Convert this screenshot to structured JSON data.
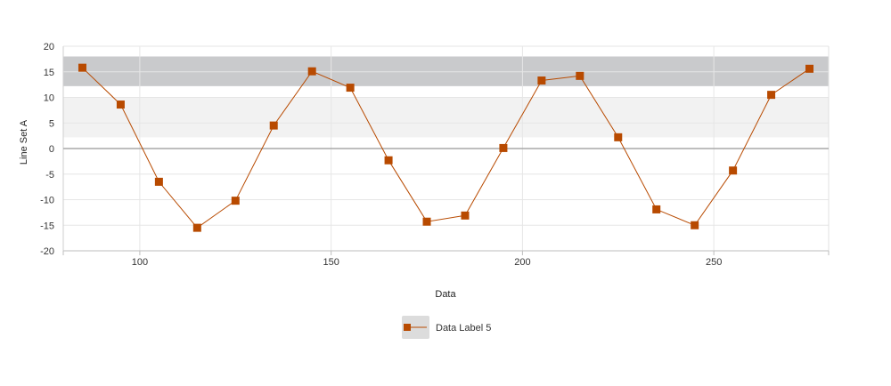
{
  "chart_data": {
    "type": "line",
    "xlabel": "Data",
    "ylabel": "Line Set A",
    "xlim": [
      80,
      280
    ],
    "ylim": [
      -20,
      20
    ],
    "x_ticks": [
      100,
      150,
      200,
      250
    ],
    "y_ticks": [
      20,
      15,
      10,
      5,
      0,
      -5,
      -10,
      -15,
      -20
    ],
    "grid": true,
    "legend_position": "bottom",
    "bands": [
      {
        "from": 2.2,
        "to": 10,
        "color": "#f2f2f2"
      },
      {
        "from": 12.2,
        "to": 18,
        "color": "#c9cacc"
      }
    ],
    "series": [
      {
        "name": "Data Label 5",
        "color": "#b84a00",
        "marker": "square",
        "x": [
          85,
          95,
          105,
          115,
          125,
          135,
          145,
          155,
          165,
          175,
          185,
          195,
          205,
          215,
          225,
          235,
          245,
          255,
          265,
          275
        ],
        "y": [
          15.8,
          8.6,
          -6.5,
          -15.5,
          -10.2,
          4.5,
          15.1,
          11.9,
          -2.3,
          -14.3,
          -13.1,
          0.1,
          13.3,
          14.2,
          2.2,
          -11.9,
          -15.0,
          -4.3,
          10.5,
          15.6
        ]
      }
    ]
  }
}
